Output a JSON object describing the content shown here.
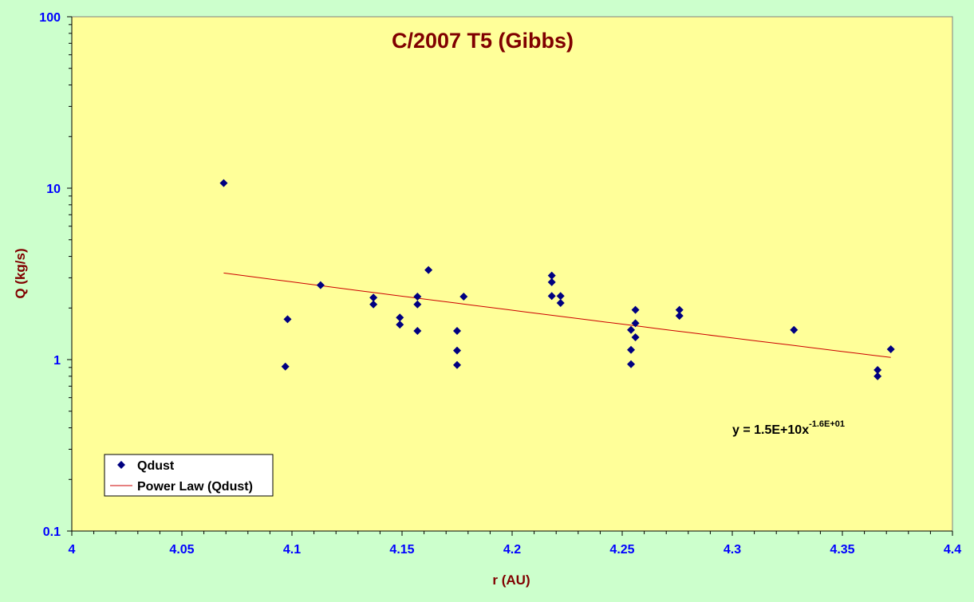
{
  "chart_data": {
    "type": "scatter",
    "title": "C/2007 T5 (Gibbs)",
    "xlabel": "r (AU)",
    "ylabel": "Q (kg/s)",
    "xlim": [
      4.0,
      4.4
    ],
    "ylim": [
      0.1,
      100
    ],
    "y_scale": "log",
    "x_ticks": [
      "4",
      "4.05",
      "4.1",
      "4.15",
      "4.2",
      "4.25",
      "4.3",
      "4.35",
      "4.4"
    ],
    "y_ticks": [
      "0.1",
      "1",
      "10",
      "100"
    ],
    "grid": false,
    "legend_position": "bottom-left",
    "legend": [
      "Qdust",
      "Power Law (Qdust)"
    ],
    "equation": {
      "main": "y = 1.5E+10x",
      "exponent": "-1.6E+01"
    },
    "series": [
      {
        "name": "Qdust",
        "marker": "diamond",
        "color": "#000080",
        "points": [
          [
            4.069,
            10.7
          ],
          [
            4.097,
            0.91
          ],
          [
            4.098,
            1.72
          ],
          [
            4.113,
            2.72
          ],
          [
            4.137,
            2.3
          ],
          [
            4.137,
            2.1
          ],
          [
            4.149,
            1.76
          ],
          [
            4.149,
            1.6
          ],
          [
            4.157,
            2.33
          ],
          [
            4.157,
            2.1
          ],
          [
            4.157,
            1.47
          ],
          [
            4.162,
            3.33
          ],
          [
            4.175,
            1.47
          ],
          [
            4.175,
            1.13
          ],
          [
            4.175,
            0.93
          ],
          [
            4.178,
            2.33
          ],
          [
            4.218,
            3.09
          ],
          [
            4.218,
            2.83
          ],
          [
            4.218,
            2.35
          ],
          [
            4.222,
            2.35
          ],
          [
            4.222,
            2.14
          ],
          [
            4.254,
            1.49
          ],
          [
            4.254,
            1.14
          ],
          [
            4.254,
            0.94
          ],
          [
            4.256,
            1.95
          ],
          [
            4.256,
            1.63
          ],
          [
            4.256,
            1.35
          ],
          [
            4.276,
            1.95
          ],
          [
            4.276,
            1.8
          ],
          [
            4.328,
            1.49
          ],
          [
            4.366,
            0.87
          ],
          [
            4.366,
            0.8
          ],
          [
            4.372,
            1.15
          ]
        ]
      },
      {
        "name": "Power Law (Qdust)",
        "type": "line",
        "color": "#cc0000",
        "x_range": [
          4.069,
          4.372
        ],
        "y_range": [
          3.2,
          1.03
        ]
      }
    ]
  }
}
